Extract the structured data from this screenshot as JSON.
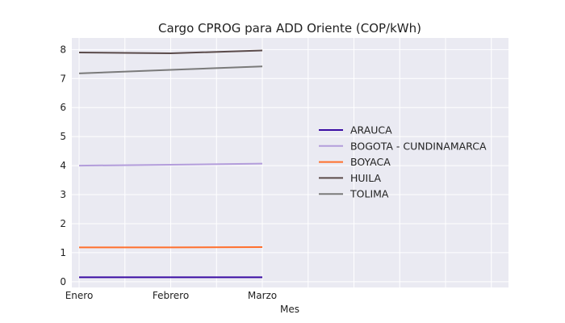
{
  "chart_data": {
    "type": "line",
    "title": "Cargo CPROG para ADD Oriente (COP/kWh)",
    "xlabel": "Mes",
    "ylabel": "",
    "categories": [
      "Enero",
      "Febrero",
      "Marzo"
    ],
    "ylim": [
      -0.2,
      8.4
    ],
    "yticks": [
      0,
      1,
      2,
      3,
      4,
      5,
      6,
      7,
      8
    ],
    "grid": true,
    "legend_position": "right",
    "series": [
      {
        "name": "ARAUCA",
        "values": [
          0.15,
          0.15,
          0.15
        ],
        "color": "#3a0ca3"
      },
      {
        "name": "BOGOTA - CUNDINAMARCA",
        "values": [
          4.0,
          4.03,
          4.07
        ],
        "color": "#b39ddb"
      },
      {
        "name": "BOYACA",
        "values": [
          1.18,
          1.18,
          1.19
        ],
        "color": "#ff6f2c"
      },
      {
        "name": "HUILA",
        "values": [
          7.9,
          7.87,
          7.97
        ],
        "color": "#5a4a4a"
      },
      {
        "name": "TOLIMA",
        "values": [
          7.18,
          7.3,
          7.42
        ],
        "color": "#7a7a7a"
      }
    ]
  }
}
